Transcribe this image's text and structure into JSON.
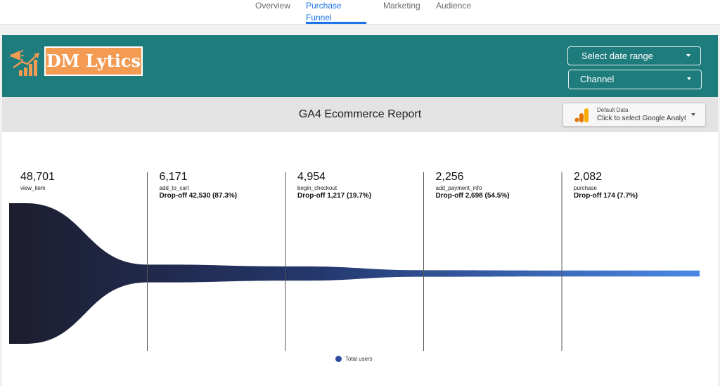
{
  "nav": {
    "tabs": [
      {
        "label": "Overview"
      },
      {
        "label": "Purchase Funnel",
        "active": true
      },
      {
        "label": "Marketing"
      },
      {
        "label": "Audience"
      }
    ]
  },
  "banner": {
    "logo_text": "DM Lytics",
    "date_range_label": "Select date range",
    "channel_label": "Channel",
    "background_color": "#1f7c7d",
    "logo_color": "#f39a53"
  },
  "report": {
    "title": "GA4 Ecommerce Report",
    "data_source": {
      "name": "Default Data",
      "subtitle": "Click to select Google Analytics",
      "icon": "google-analytics-icon"
    }
  },
  "chart_data": {
    "type": "funnel",
    "steps": [
      {
        "name": "view_item",
        "users": 48701,
        "value_label": "48,701",
        "dropoff_label": ""
      },
      {
        "name": "add_to_cart",
        "users": 6171,
        "value_label": "6,171",
        "dropoff_label": "Drop-off 42,530 (87.3%)"
      },
      {
        "name": "begin_checkout",
        "users": 4954,
        "value_label": "4,954",
        "dropoff_label": "Drop-off 1,217 (19.7%)"
      },
      {
        "name": "add_payment_info",
        "users": 2256,
        "value_label": "2,256",
        "dropoff_label": "Drop-off 2,698 (54.5%)"
      },
      {
        "name": "purchase",
        "users": 2082,
        "value_label": "2,082",
        "dropoff_label": "Drop-off 174 (7.7%)"
      }
    ],
    "series": [
      {
        "name": "Total users"
      }
    ],
    "colors": {
      "start": "#1d1d2e",
      "mid": "#24386e",
      "end": "#4a88e6"
    }
  }
}
